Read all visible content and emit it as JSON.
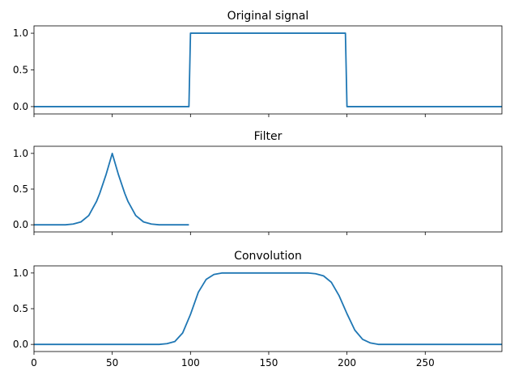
{
  "chart_data": [
    {
      "type": "line",
      "title": "Original signal",
      "xlim": [
        0,
        299
      ],
      "ylim": [
        -0.1,
        1.1
      ],
      "yticks": [
        0.0,
        0.5,
        1.0
      ],
      "ytick_labels": [
        "0.0",
        "0.5",
        "1.0"
      ],
      "xticks": [
        0,
        50,
        100,
        150,
        200,
        250
      ],
      "xtick_labels": [],
      "series": [
        {
          "color": "#1f77b4",
          "x": [
            0,
            99,
            100,
            199,
            200,
            299
          ],
          "y": [
            0,
            0,
            1,
            1,
            0,
            0
          ]
        }
      ]
    },
    {
      "type": "line",
      "title": "Filter",
      "xlim": [
        0,
        299
      ],
      "ylim": [
        -0.1,
        1.1
      ],
      "yticks": [
        0.0,
        0.5,
        1.0
      ],
      "ytick_labels": [
        "0.0",
        "0.5",
        "1.0"
      ],
      "xticks": [
        0,
        50,
        100,
        150,
        200,
        250
      ],
      "xtick_labels": [],
      "series": [
        {
          "color": "#1f77b4",
          "x": [
            0,
            20,
            25,
            30,
            35,
            40,
            42,
            44,
            46,
            48,
            50,
            52,
            54,
            56,
            58,
            60,
            65,
            70,
            75,
            80,
            99
          ],
          "y": [
            0,
            0.0,
            0.01,
            0.04,
            0.13,
            0.33,
            0.44,
            0.57,
            0.7,
            0.85,
            1.0,
            0.85,
            0.7,
            0.57,
            0.44,
            0.33,
            0.13,
            0.04,
            0.01,
            0.0,
            0.0
          ]
        }
      ]
    },
    {
      "type": "line",
      "title": "Convolution",
      "xlim": [
        0,
        299
      ],
      "ylim": [
        -0.1,
        1.1
      ],
      "yticks": [
        0.0,
        0.5,
        1.0
      ],
      "ytick_labels": [
        "0.0",
        "0.5",
        "1.0"
      ],
      "xticks": [
        0,
        50,
        100,
        150,
        200,
        250
      ],
      "xtick_labels": [
        "0",
        "50",
        "100",
        "150",
        "200",
        "250"
      ],
      "series": [
        {
          "color": "#1f77b4",
          "x": [
            0,
            75,
            80,
            85,
            90,
            95,
            100,
            105,
            110,
            115,
            120,
            125,
            175,
            180,
            185,
            190,
            195,
            200,
            205,
            210,
            215,
            220,
            225,
            299
          ],
          "y": [
            0,
            0,
            0.0,
            0.01,
            0.04,
            0.16,
            0.42,
            0.73,
            0.91,
            0.98,
            1.0,
            1.0,
            1.0,
            0.99,
            0.96,
            0.87,
            0.68,
            0.43,
            0.2,
            0.07,
            0.02,
            0.0,
            0.0,
            0.0
          ]
        }
      ]
    }
  ]
}
